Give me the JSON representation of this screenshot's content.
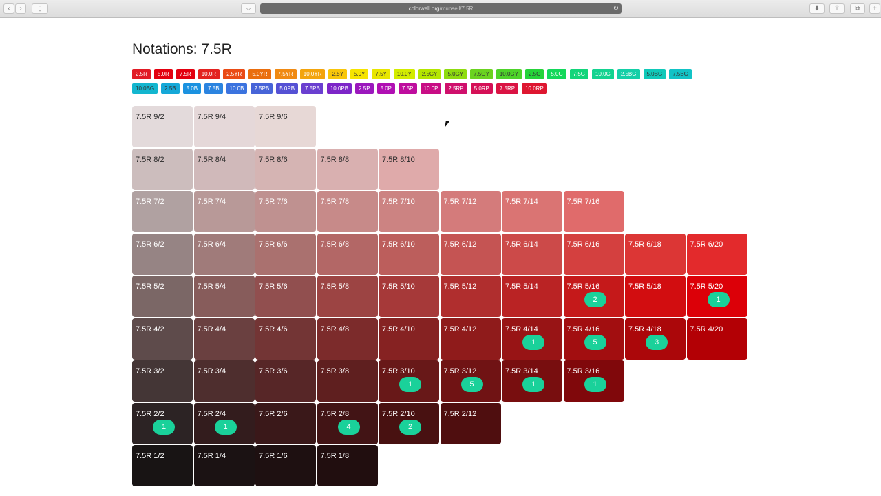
{
  "browser": {
    "url_host": "colorwell.org",
    "url_path": "/munsell/7.5R"
  },
  "page": {
    "title": "Notations: 7.5R"
  },
  "notation_chips": [
    {
      "label": "2.5R",
      "color": "#e11b25"
    },
    {
      "label": "5.0R",
      "color": "#e3000f"
    },
    {
      "label": "7.5R",
      "color": "#e3000f"
    },
    {
      "label": "10.0R",
      "color": "#e3221f"
    },
    {
      "label": "2.5YR",
      "color": "#ea4b15"
    },
    {
      "label": "5.0YR",
      "color": "#ea6e0e"
    },
    {
      "label": "7.5YR",
      "color": "#f08a13"
    },
    {
      "label": "10.0YR",
      "color": "#f3a40d"
    },
    {
      "label": "2.5Y",
      "color": "#f8c60b",
      "dark": true
    },
    {
      "label": "5.0Y",
      "color": "#f6e400",
      "dark": true
    },
    {
      "label": "7.5Y",
      "color": "#e8e600",
      "dark": true
    },
    {
      "label": "10.0Y",
      "color": "#d3ec00",
      "dark": true
    },
    {
      "label": "2.5GY",
      "color": "#b4e600",
      "dark": true
    },
    {
      "label": "5.0GY",
      "color": "#8fdc0f",
      "dark": true
    },
    {
      "label": "7.5GY",
      "color": "#6bd320",
      "dark": true
    },
    {
      "label": "10.0GY",
      "color": "#4ed32a",
      "dark": true
    },
    {
      "label": "2.5G",
      "color": "#26d33a",
      "dark": true
    },
    {
      "label": "5.0G",
      "color": "#13d85a"
    },
    {
      "label": "7.5G",
      "color": "#12d57a"
    },
    {
      "label": "10.0G",
      "color": "#13d390"
    },
    {
      "label": "2.5BG",
      "color": "#14cfa7"
    },
    {
      "label": "5.0BG",
      "color": "#10c9b9",
      "dark": true
    },
    {
      "label": "7.5BG",
      "color": "#12c3c6",
      "dark": true
    },
    {
      "label": "10.0BG",
      "color": "#13b6cf",
      "dark": true
    },
    {
      "label": "2.5B",
      "color": "#15a8d8",
      "dark": true
    },
    {
      "label": "5.0B",
      "color": "#1b92e0"
    },
    {
      "label": "7.5B",
      "color": "#2b84e0"
    },
    {
      "label": "10.0B",
      "color": "#3b73df"
    },
    {
      "label": "2.5PB",
      "color": "#4764d8"
    },
    {
      "label": "5.0PB",
      "color": "#5551d4"
    },
    {
      "label": "7.5PB",
      "color": "#6a3fd0"
    },
    {
      "label": "10.0PB",
      "color": "#7d25c8"
    },
    {
      "label": "2.5P",
      "color": "#9b18bd"
    },
    {
      "label": "5.0P",
      "color": "#b00fb3"
    },
    {
      "label": "7.5P",
      "color": "#be0d9e"
    },
    {
      "label": "10.0P",
      "color": "#c80d85"
    },
    {
      "label": "2.5RP",
      "color": "#cf0f6c"
    },
    {
      "label": "5.0RP",
      "color": "#d51056"
    },
    {
      "label": "7.5RP",
      "color": "#da1343"
    },
    {
      "label": "10.0RP",
      "color": "#de1630"
    }
  ],
  "grid": [
    {
      "label": "7.5R 9/2",
      "row": 0,
      "col": 0,
      "color": "#e3dadb",
      "light": true
    },
    {
      "label": "7.5R 9/4",
      "row": 0,
      "col": 1,
      "color": "#e5d8d9",
      "light": true
    },
    {
      "label": "7.5R 9/6",
      "row": 0,
      "col": 2,
      "color": "#e7d8d6",
      "light": true
    },
    {
      "label": "7.5R 8/2",
      "row": 1,
      "col": 0,
      "color": "#ccbdbd",
      "light": true
    },
    {
      "label": "7.5R 8/4",
      "row": 1,
      "col": 1,
      "color": "#d0b9ba",
      "light": true
    },
    {
      "label": "7.5R 8/6",
      "row": 1,
      "col": 2,
      "color": "#d5b4b3",
      "light": true
    },
    {
      "label": "7.5R 8/8",
      "row": 1,
      "col": 3,
      "color": "#d9b0b0",
      "light": true
    },
    {
      "label": "7.5R 8/10",
      "row": 1,
      "col": 4,
      "color": "#dfaaaa",
      "light": true
    },
    {
      "label": "7.5R 7/2",
      "row": 2,
      "col": 0,
      "color": "#b0a1a1"
    },
    {
      "label": "7.5R 7/4",
      "row": 2,
      "col": 1,
      "color": "#b89998"
    },
    {
      "label": "7.5R 7/6",
      "row": 2,
      "col": 2,
      "color": "#bf9190"
    },
    {
      "label": "7.5R 7/8",
      "row": 2,
      "col": 3,
      "color": "#c78a89"
    },
    {
      "label": "7.5R 7/10",
      "row": 2,
      "col": 4,
      "color": "#cc8382"
    },
    {
      "label": "7.5R 7/12",
      "row": 2,
      "col": 5,
      "color": "#d47b7b"
    },
    {
      "label": "7.5R 7/14",
      "row": 2,
      "col": 6,
      "color": "#da7473"
    },
    {
      "label": "7.5R 7/16",
      "row": 2,
      "col": 7,
      "color": "#e06b6b"
    },
    {
      "label": "7.5R 6/2",
      "row": 3,
      "col": 0,
      "color": "#968484"
    },
    {
      "label": "7.5R 6/4",
      "row": 3,
      "col": 1,
      "color": "#a07b7a"
    },
    {
      "label": "7.5R 6/6",
      "row": 3,
      "col": 2,
      "color": "#aa716f"
    },
    {
      "label": "7.5R 6/8",
      "row": 3,
      "col": 3,
      "color": "#b36766"
    },
    {
      "label": "7.5R 6/10",
      "row": 3,
      "col": 4,
      "color": "#bc5e5c"
    },
    {
      "label": "7.5R 6/12",
      "row": 3,
      "col": 5,
      "color": "#c55453"
    },
    {
      "label": "7.5R 6/14",
      "row": 3,
      "col": 6,
      "color": "#cc4a49"
    },
    {
      "label": "7.5R 6/16",
      "row": 3,
      "col": 7,
      "color": "#d4403f"
    },
    {
      "label": "7.5R 6/18",
      "row": 3,
      "col": 8,
      "color": "#dc3635"
    },
    {
      "label": "7.5R 6/20",
      "row": 3,
      "col": 9,
      "color": "#e32a2c"
    },
    {
      "label": "7.5R 5/2",
      "row": 4,
      "col": 0,
      "color": "#7b6766"
    },
    {
      "label": "7.5R 5/4",
      "row": 4,
      "col": 1,
      "color": "#875c5b"
    },
    {
      "label": "7.5R 5/6",
      "row": 4,
      "col": 2,
      "color": "#914f4f"
    },
    {
      "label": "7.5R 5/8",
      "row": 4,
      "col": 3,
      "color": "#9c4443"
    },
    {
      "label": "7.5R 5/10",
      "row": 4,
      "col": 4,
      "color": "#a63939"
    },
    {
      "label": "7.5R 5/12",
      "row": 4,
      "col": 5,
      "color": "#b02e2e"
    },
    {
      "label": "7.5R 5/14",
      "row": 4,
      "col": 6,
      "color": "#ba2324"
    },
    {
      "label": "7.5R 5/16",
      "row": 4,
      "col": 7,
      "color": "#c5191a",
      "badge": "2"
    },
    {
      "label": "7.5R 5/18",
      "row": 4,
      "col": 8,
      "color": "#d20d10"
    },
    {
      "label": "7.5R 5/20",
      "row": 4,
      "col": 9,
      "color": "#dc0008",
      "badge": "1"
    },
    {
      "label": "7.5R 4/2",
      "row": 5,
      "col": 0,
      "color": "#5e4b4b"
    },
    {
      "label": "7.5R 4/4",
      "row": 5,
      "col": 1,
      "color": "#6a4040"
    },
    {
      "label": "7.5R 4/6",
      "row": 5,
      "col": 2,
      "color": "#733535"
    },
    {
      "label": "7.5R 4/8",
      "row": 5,
      "col": 3,
      "color": "#7c2b2b"
    },
    {
      "label": "7.5R 4/10",
      "row": 5,
      "col": 4,
      "color": "#862222"
    },
    {
      "label": "7.5R 4/12",
      "row": 5,
      "col": 5,
      "color": "#8f1b1b"
    },
    {
      "label": "7.5R 4/14",
      "row": 5,
      "col": 6,
      "color": "#981415",
      "badge": "1"
    },
    {
      "label": "7.5R 4/16",
      "row": 5,
      "col": 7,
      "color": "#a20e10",
      "badge": "5"
    },
    {
      "label": "7.5R 4/18",
      "row": 5,
      "col": 8,
      "color": "#ab070a",
      "badge": "3"
    },
    {
      "label": "7.5R 4/20",
      "row": 5,
      "col": 9,
      "color": "#b30005"
    },
    {
      "label": "7.5R 3/2",
      "row": 6,
      "col": 0,
      "color": "#443636"
    },
    {
      "label": "7.5R 3/4",
      "row": 6,
      "col": 1,
      "color": "#4e2e2e"
    },
    {
      "label": "7.5R 3/6",
      "row": 6,
      "col": 2,
      "color": "#572627"
    },
    {
      "label": "7.5R 3/8",
      "row": 6,
      "col": 3,
      "color": "#5f1f1f"
    },
    {
      "label": "7.5R 3/10",
      "row": 6,
      "col": 4,
      "color": "#681818",
      "badge": "1"
    },
    {
      "label": "7.5R 3/12",
      "row": 6,
      "col": 5,
      "color": "#701314",
      "badge": "5"
    },
    {
      "label": "7.5R 3/14",
      "row": 6,
      "col": 6,
      "color": "#780e0f",
      "badge": "1"
    },
    {
      "label": "7.5R 3/16",
      "row": 6,
      "col": 7,
      "color": "#80080b",
      "badge": "1"
    },
    {
      "label": "7.5R 2/2",
      "row": 7,
      "col": 0,
      "color": "#2c2324",
      "badge": "1"
    },
    {
      "label": "7.5R 2/4",
      "row": 7,
      "col": 1,
      "color": "#331c1d",
      "badge": "1"
    },
    {
      "label": "7.5R 2/6",
      "row": 7,
      "col": 2,
      "color": "#3a1819"
    },
    {
      "label": "7.5R 2/8",
      "row": 7,
      "col": 3,
      "color": "#421415",
      "badge": "4"
    },
    {
      "label": "7.5R 2/10",
      "row": 7,
      "col": 4,
      "color": "#481111",
      "badge": "2"
    },
    {
      "label": "7.5R 2/12",
      "row": 7,
      "col": 5,
      "color": "#4f0e0f"
    },
    {
      "label": "7.5R 1/2",
      "row": 8,
      "col": 0,
      "color": "#181414"
    },
    {
      "label": "7.5R 1/4",
      "row": 8,
      "col": 1,
      "color": "#1b1213"
    },
    {
      "label": "7.5R 1/6",
      "row": 8,
      "col": 2,
      "color": "#1e1011"
    },
    {
      "label": "7.5R 1/8",
      "row": 8,
      "col": 3,
      "color": "#210e0f"
    }
  ]
}
